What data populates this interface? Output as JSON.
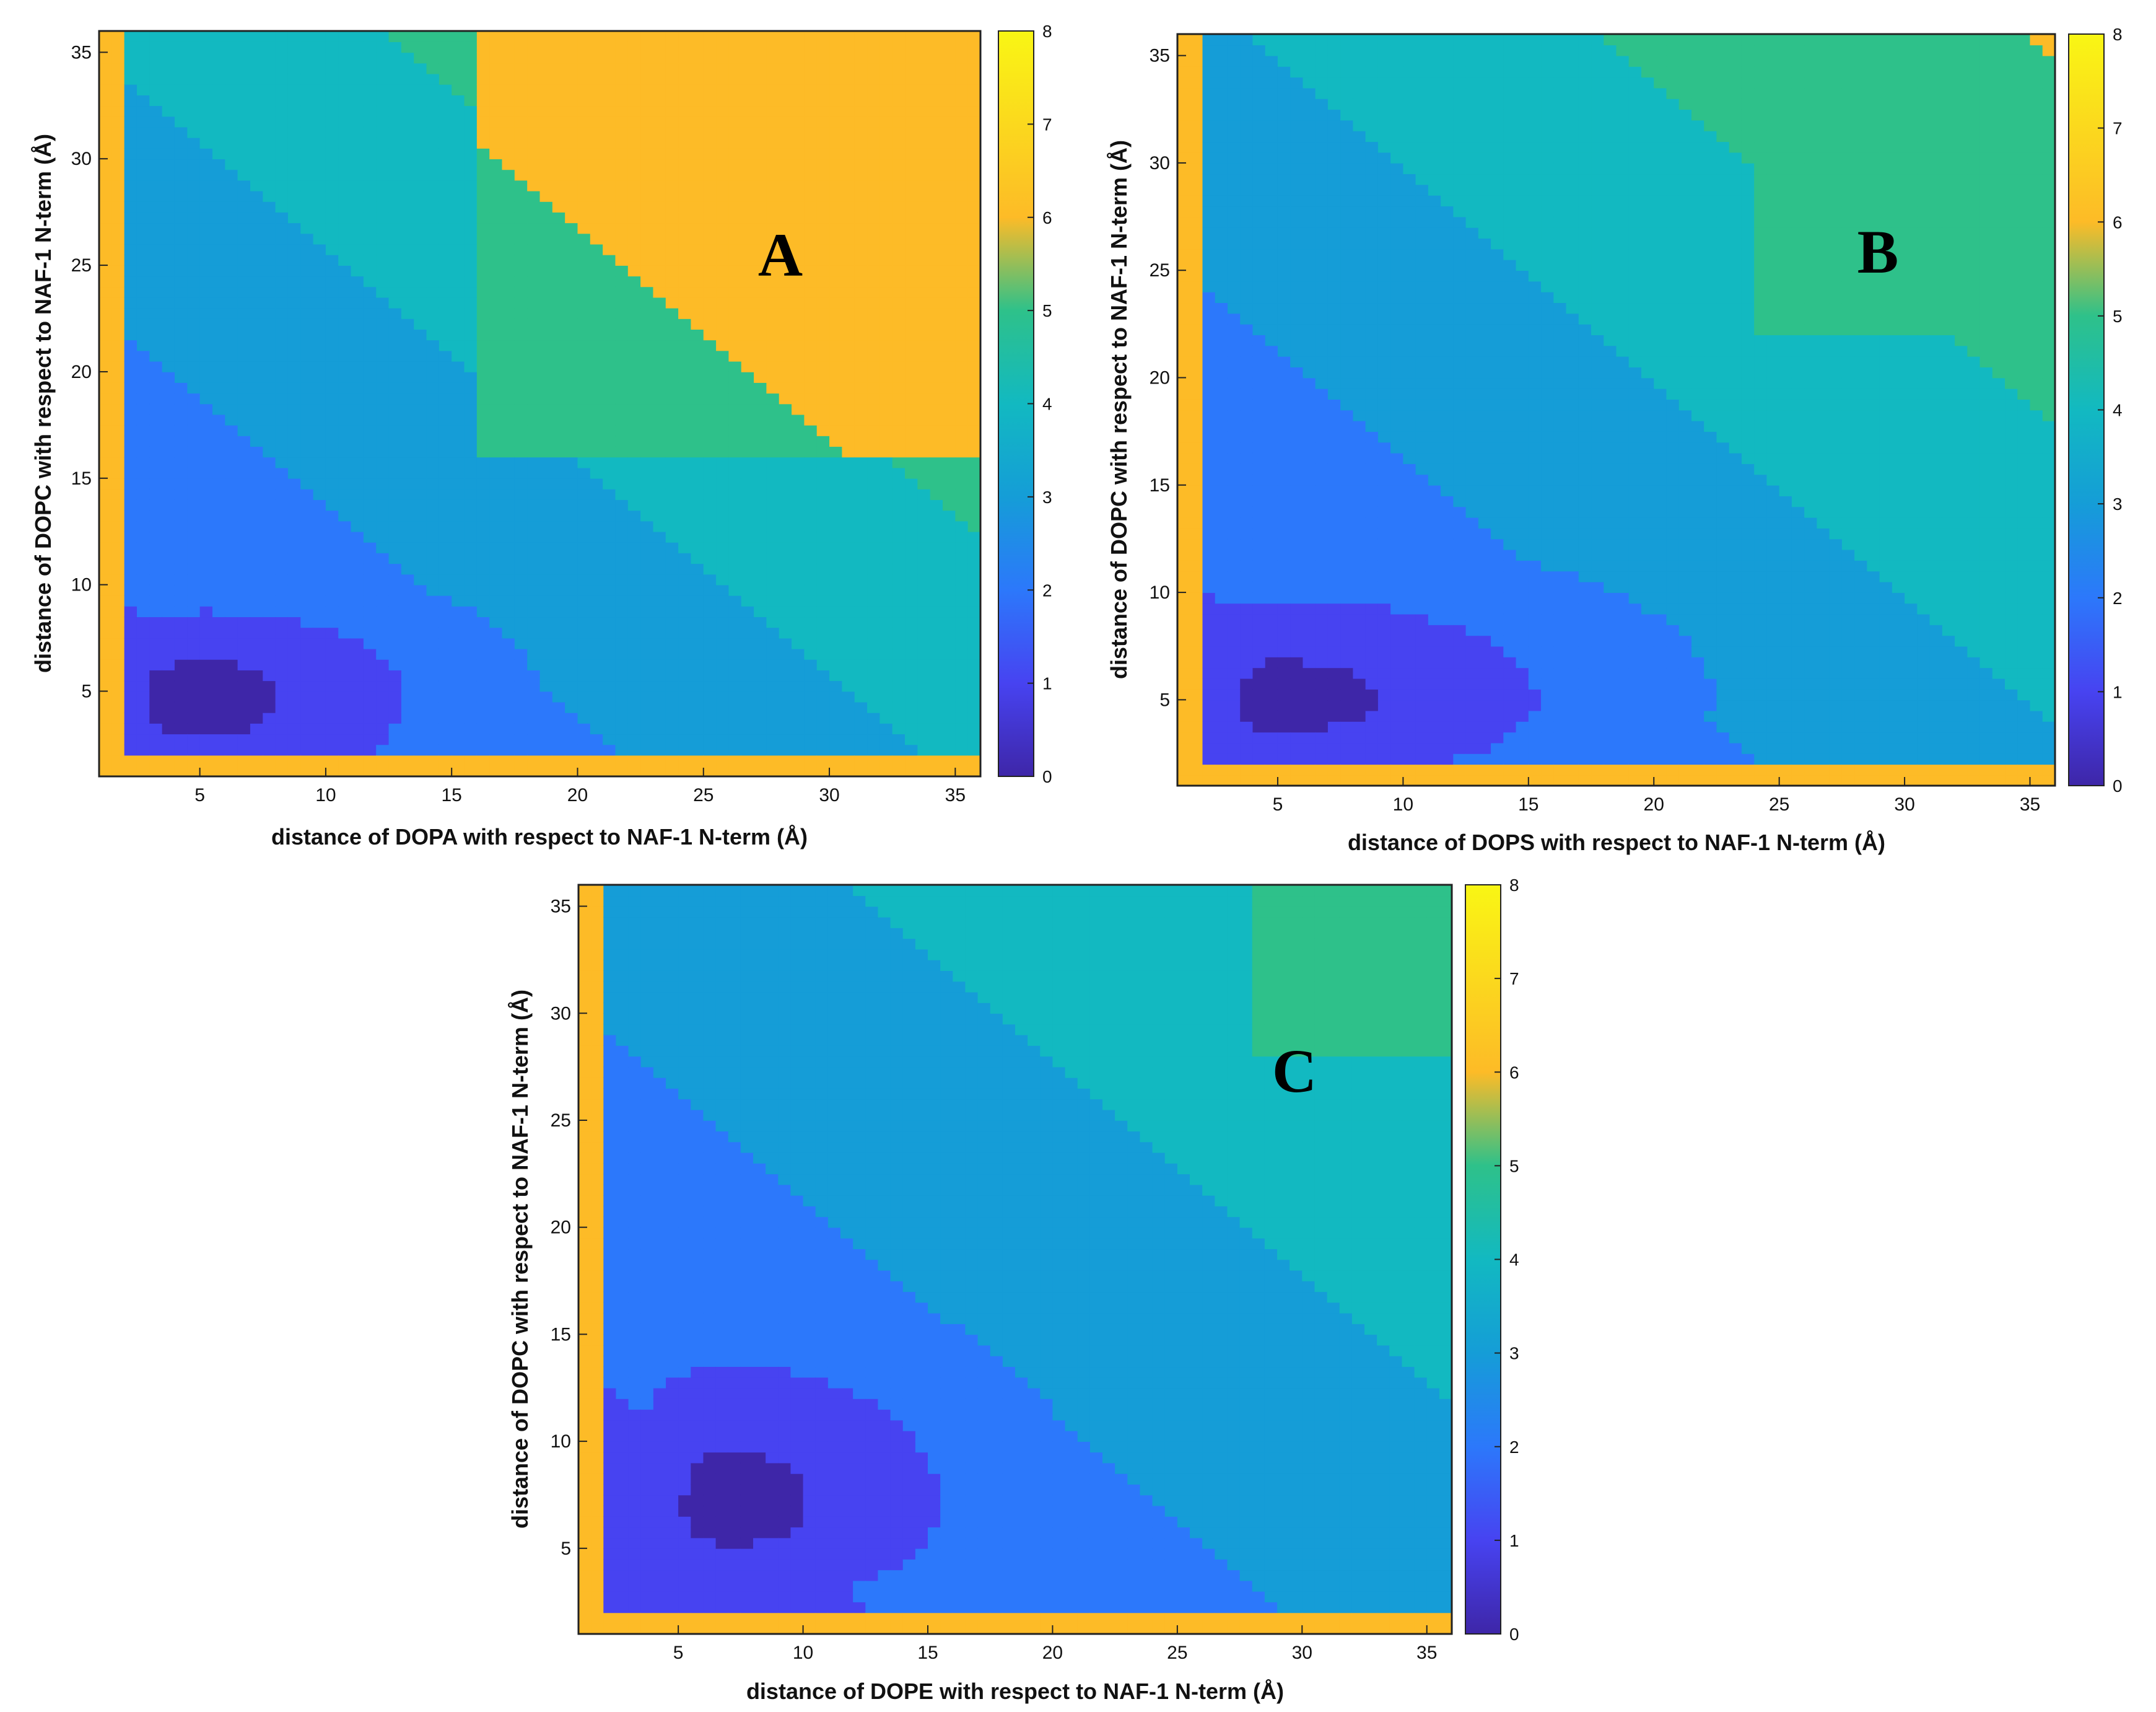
{
  "colormap": [
    "#3e26a8",
    "#4743f1",
    "#2c78fb",
    "#159dd7",
    "#12b9c1",
    "#2ec18a",
    "#fdbb27",
    "#f9f614"
  ],
  "chart_data": [
    {
      "type": "heatmap",
      "panel_label": "A",
      "xlabel": "distance of DOPA with respect to NAF-1 N-term (Å)",
      "ylabel": "distance of DOPC with respect to NAF-1 N-term (Å)",
      "xlim": [
        1,
        36
      ],
      "ylim": [
        1,
        36
      ],
      "xticks": [
        "5",
        "10",
        "15",
        "20",
        "25",
        "30",
        "35"
      ],
      "yticks": [
        "5",
        "10",
        "15",
        "20",
        "25",
        "30",
        "35"
      ],
      "colorbar": {
        "range": [
          0,
          8
        ],
        "ticks": [
          "0",
          "1",
          "2",
          "3",
          "4",
          "5",
          "6",
          "7",
          "8"
        ]
      },
      "minimum": {
        "x": 5,
        "y": 5,
        "value": 0.2
      },
      "spread": {
        "x_low": 6,
        "x_high": 8.5,
        "y_low": 6,
        "y_high": 4,
        "diag": 18
      },
      "plateau": {
        "level": 5.0,
        "x_from": 16,
        "y_from": 16
      },
      "edge_value": 6.8
    },
    {
      "type": "heatmap",
      "panel_label": "B",
      "xlabel": "distance of DOPS with respect to NAF-1 N-term (Å)",
      "ylabel": "distance of DOPC with respect to NAF-1 N-term (Å)",
      "xlim": [
        1,
        36
      ],
      "ylim": [
        1,
        36
      ],
      "xticks": [
        "5",
        "10",
        "15",
        "20",
        "25",
        "30",
        "35"
      ],
      "yticks": [
        "5",
        "10",
        "15",
        "20",
        "25",
        "30",
        "35"
      ],
      "colorbar": {
        "range": [
          0,
          8
        ],
        "ticks": [
          "0",
          "1",
          "2",
          "3",
          "4",
          "5",
          "6",
          "7",
          "8"
        ]
      },
      "minimum": {
        "x": 5,
        "y": 5,
        "value": 0.2
      },
      "spread": {
        "x_low": 4.5,
        "x_high": 11,
        "y_low": 4,
        "y_high": 5,
        "diag": 20
      },
      "plateau": {
        "level": 4.8,
        "x_from": 24,
        "y_from": 22
      },
      "edge_value": 6.8
    },
    {
      "type": "heatmap",
      "panel_label": "C",
      "xlabel": "distance of DOPE with respect to NAF-1 N-term (Å)",
      "ylabel": "distance of DOPC with respect to NAF-1 N-term (Å)",
      "xlim": [
        1,
        36
      ],
      "ylim": [
        1,
        36
      ],
      "xticks": [
        "5",
        "10",
        "15",
        "20",
        "25",
        "30",
        "35"
      ],
      "yticks": [
        "5",
        "10",
        "15",
        "20",
        "25",
        "30",
        "35"
      ],
      "colorbar": {
        "range": [
          0,
          8
        ],
        "ticks": [
          "0",
          "1",
          "2",
          "3",
          "4",
          "5",
          "6",
          "7",
          "8"
        ]
      },
      "minimum": {
        "x": 7,
        "y": 7,
        "value": 0.2
      },
      "spread": {
        "x_low": 5,
        "x_high": 9,
        "y_low": 5,
        "y_high": 7,
        "diag": 24
      },
      "plateau": {
        "level": 4.6,
        "x_from": 28,
        "y_from": 28
      },
      "edge_value": 6.8
    }
  ]
}
